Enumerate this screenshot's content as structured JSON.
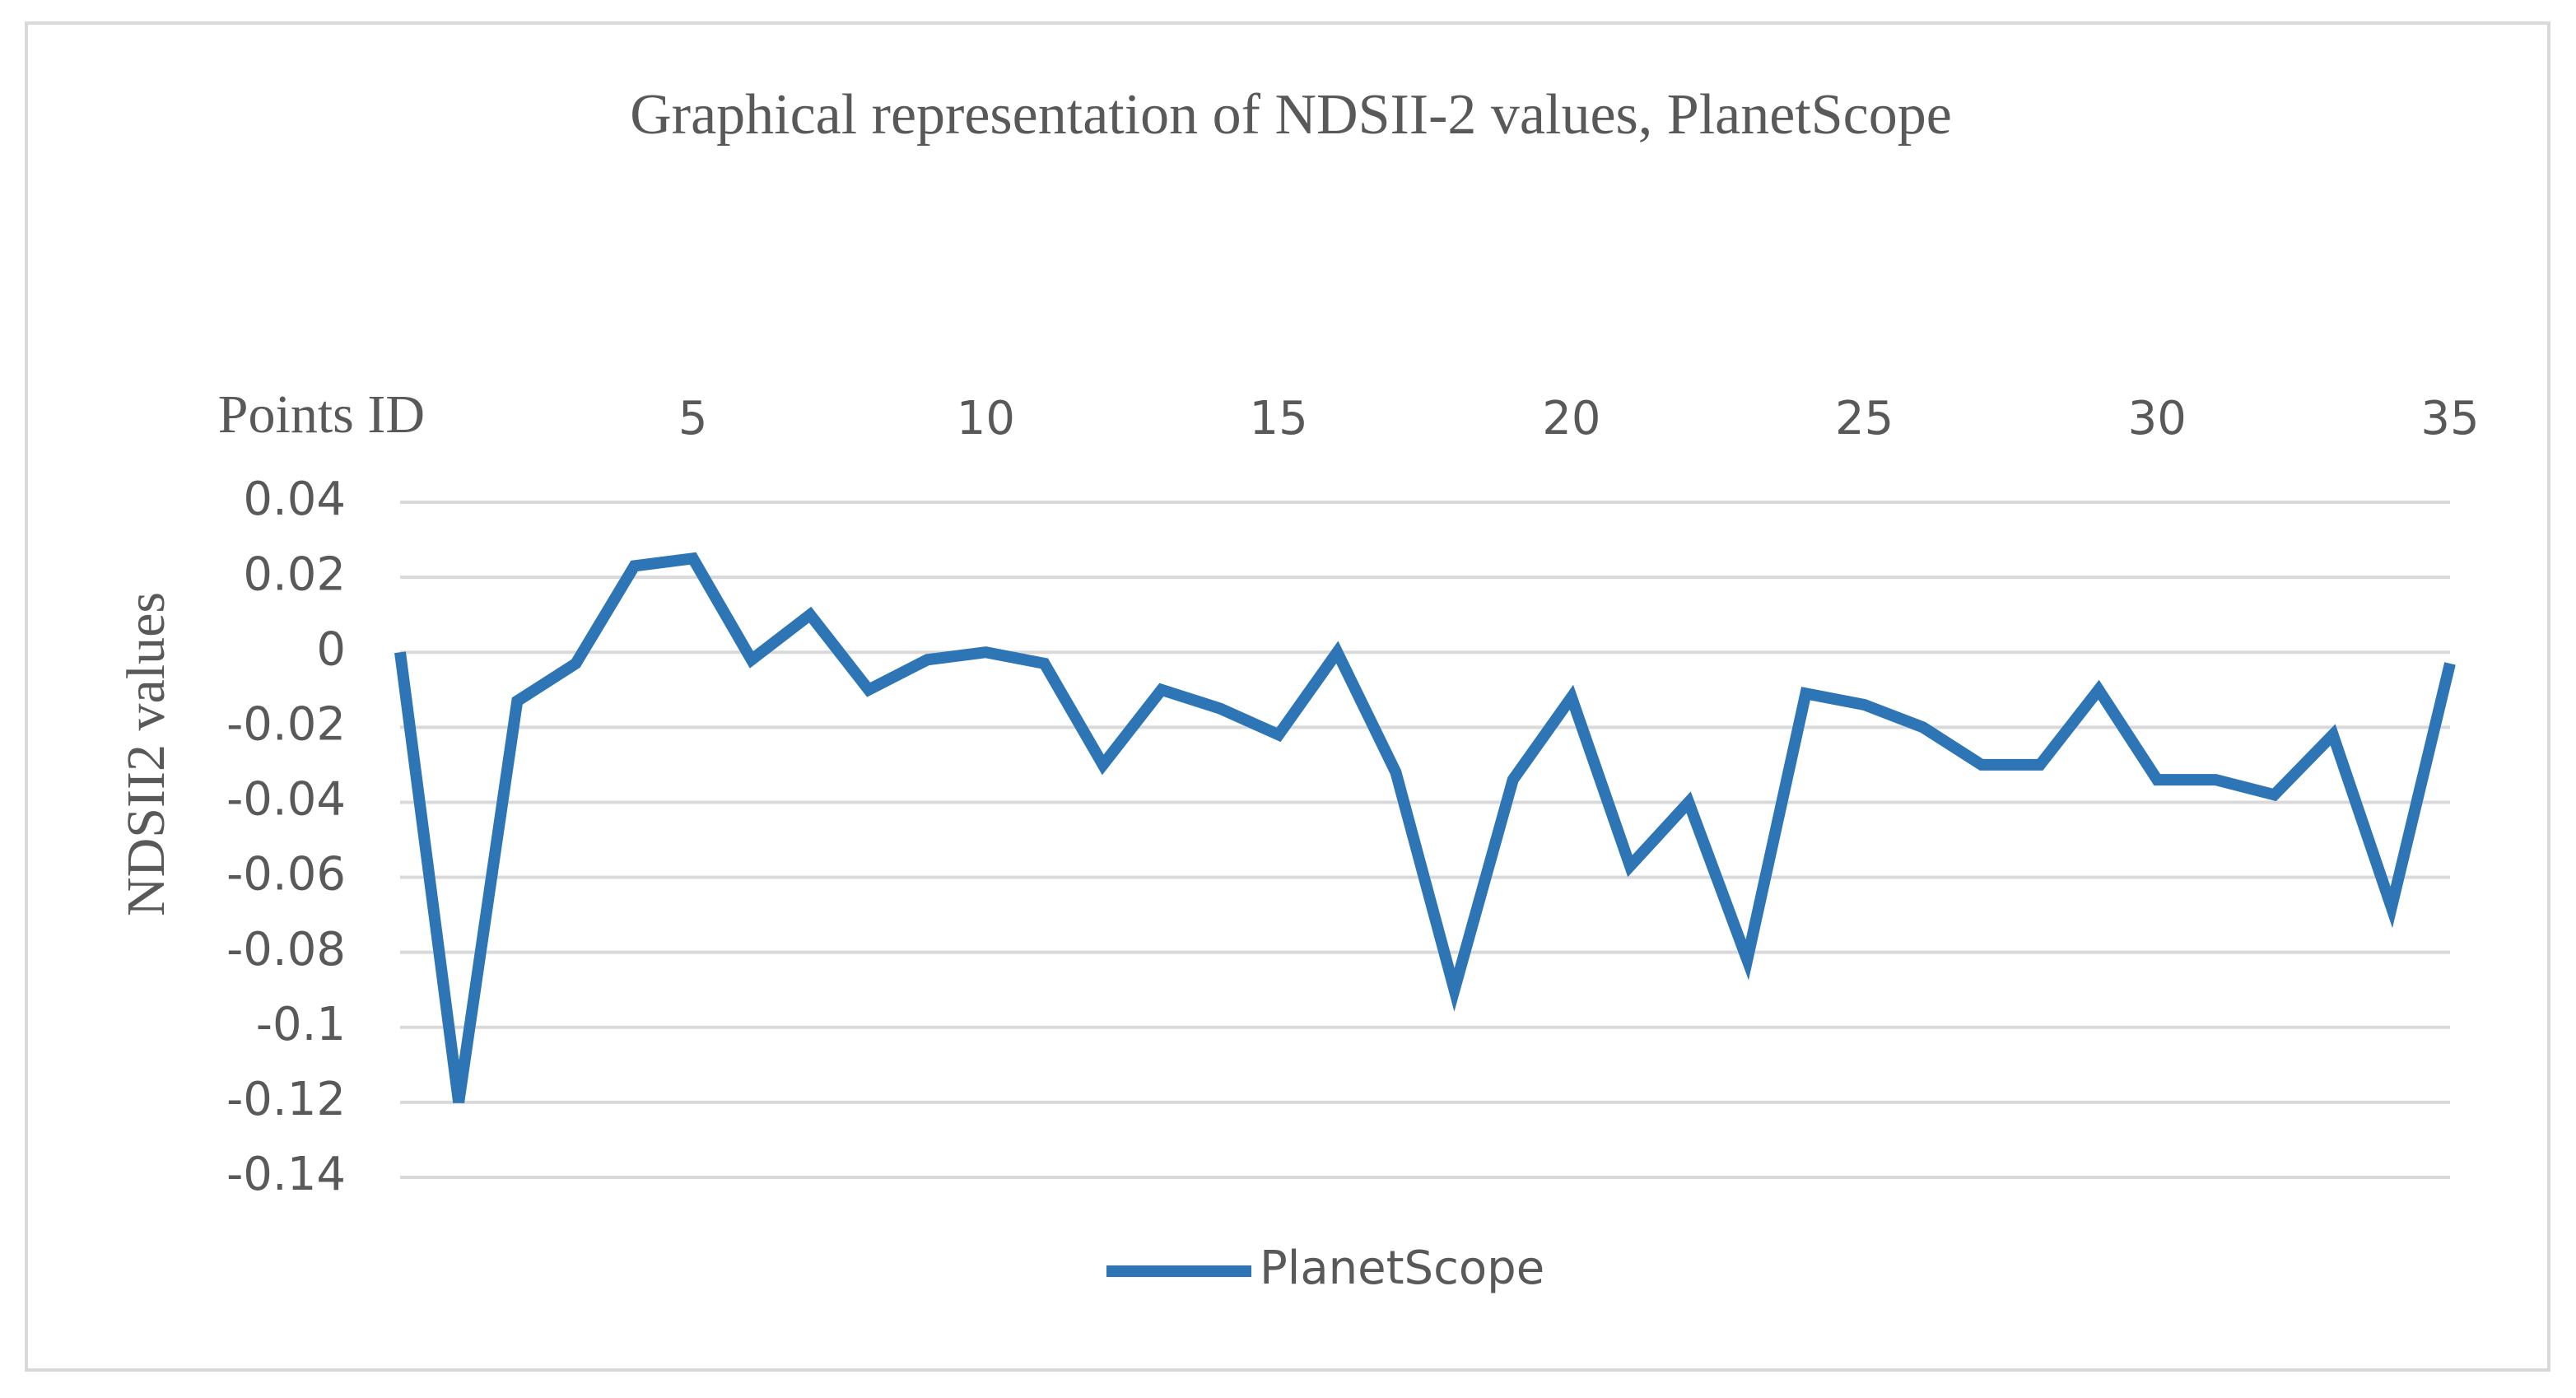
{
  "chart_data": {
    "type": "line",
    "title": "Graphical representation of NDSII-2 values, PlanetScope",
    "x_label": "Points ID",
    "y_label": "NDSII2 values",
    "x": [
      0,
      1,
      2,
      3,
      4,
      5,
      6,
      7,
      8,
      9,
      10,
      11,
      12,
      13,
      14,
      15,
      16,
      17,
      18,
      19,
      20,
      21,
      22,
      23,
      24,
      25,
      26,
      27,
      28,
      29,
      30,
      31,
      32,
      33,
      34,
      35
    ],
    "series": [
      {
        "name": "PlanetScope",
        "color": "#2e75b6",
        "values": [
          0,
          -0.12,
          -0.013,
          -0.003,
          0.023,
          0.025,
          -0.002,
          0.01,
          -0.01,
          -0.002,
          0,
          -0.003,
          -0.03,
          -0.01,
          -0.015,
          -0.022,
          0,
          -0.032,
          -0.09,
          -0.034,
          -0.012,
          -0.057,
          -0.04,
          -0.082,
          -0.011,
          -0.014,
          -0.02,
          -0.03,
          -0.03,
          -0.01,
          -0.034,
          -0.034,
          -0.038,
          -0.022,
          -0.068,
          -0.003
        ]
      }
    ],
    "xlim": [
      0,
      35
    ],
    "xticks": [
      5,
      10,
      15,
      20,
      25,
      30,
      35
    ],
    "ylim": [
      -0.14,
      0.04
    ],
    "yticks": [
      0.04,
      0.02,
      0,
      -0.02,
      -0.04,
      -0.06,
      -0.08,
      -0.1,
      -0.12,
      -0.14
    ],
    "grid": true,
    "legend": "bottom"
  }
}
